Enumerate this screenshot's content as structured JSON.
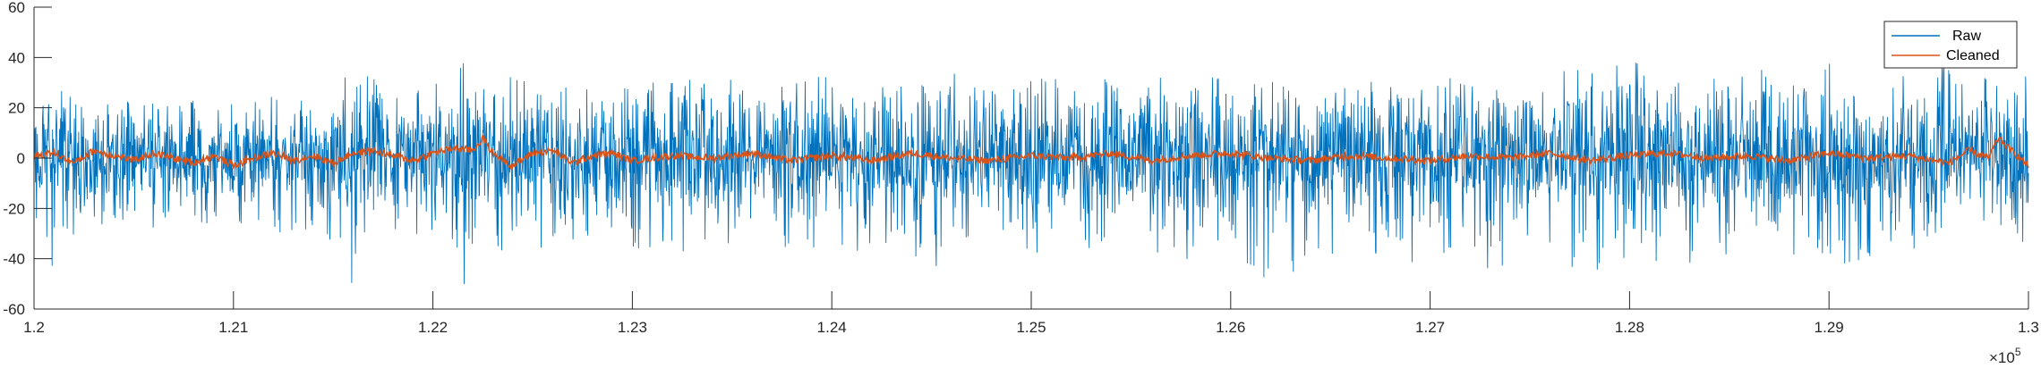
{
  "chart_data": {
    "type": "line",
    "title": "",
    "xlabel": "",
    "ylabel": "",
    "xlim": [
      120000,
      130000
    ],
    "ylim": [
      -60,
      60
    ],
    "x_tick_labels": [
      "1.2",
      "1.21",
      "1.22",
      "1.23",
      "1.24",
      "1.25",
      "1.26",
      "1.27",
      "1.28",
      "1.29",
      "1.3"
    ],
    "y_tick_labels": [
      "60",
      "40",
      "20",
      "0",
      "-20",
      "-40",
      "-60"
    ],
    "x_exponent": {
      "base": "×10",
      "power": "5"
    },
    "grid": false,
    "legend_position": "top-right",
    "series": [
      {
        "name": "Raw",
        "color": "#0072BD",
        "note": "dense noise signal; approximate envelope values per segment",
        "x": [
          120000,
          120100,
          120200,
          120300,
          120400,
          120500,
          120600,
          120700,
          120800,
          120900,
          121000,
          121100,
          121200,
          121300,
          121400,
          121500,
          121600,
          121650,
          121700,
          121800,
          121900,
          122000,
          122100,
          122150,
          122200,
          122300,
          122400,
          122500,
          122600,
          122700,
          122800,
          122900,
          123000,
          123200,
          123400,
          123600,
          123800,
          124000,
          124200,
          124400,
          124600,
          124800,
          125000,
          125200,
          125400,
          125600,
          125800,
          126000,
          126200,
          126400,
          126600,
          126800,
          127000,
          127200,
          127400,
          127600,
          127800,
          128000,
          128100,
          128200,
          128400,
          128600,
          128800,
          129000,
          129200,
          129400,
          129600,
          129800,
          130000
        ],
        "max": [
          28,
          22,
          25,
          20,
          26,
          22,
          24,
          20,
          25,
          22,
          24,
          22,
          26,
          30,
          25,
          28,
          38,
          45,
          35,
          30,
          28,
          30,
          32,
          36,
          30,
          28,
          35,
          30,
          28,
          34,
          32,
          28,
          30,
          30,
          34,
          28,
          30,
          34,
          28,
          32,
          30,
          28,
          34,
          30,
          32,
          28,
          30,
          34,
          32,
          30,
          28,
          34,
          36,
          32,
          30,
          34,
          36,
          38,
          43,
          34,
          32,
          36,
          34,
          38,
          36,
          34,
          40,
          36,
          40
        ],
        "min": [
          -27,
          -55,
          -30,
          -32,
          -28,
          -25,
          -30,
          -28,
          -32,
          -30,
          -28,
          -30,
          -32,
          -30,
          -28,
          -35,
          -54,
          -40,
          -35,
          -32,
          -30,
          -34,
          -40,
          -52,
          -42,
          -38,
          -36,
          -34,
          -47,
          -38,
          -36,
          -34,
          -36,
          -38,
          -36,
          -34,
          -38,
          -36,
          -38,
          -40,
          -46,
          -38,
          -40,
          -36,
          -38,
          -46,
          -42,
          -40,
          -50,
          -42,
          -40,
          -44,
          -40,
          -46,
          -48,
          -44,
          -46,
          -42,
          -52,
          -44,
          -42,
          -40,
          -38,
          -44,
          -40,
          -38,
          -40,
          -42,
          -40
        ]
      },
      {
        "name": "Cleaned",
        "color": "#D95319",
        "note": "smoothed trace oscillating around zero",
        "x": [
          120000,
          120100,
          120200,
          120300,
          120400,
          120500,
          120600,
          120700,
          120800,
          120900,
          121000,
          121100,
          121200,
          121300,
          121400,
          121500,
          121600,
          121700,
          121800,
          121900,
          122000,
          122100,
          122200,
          122250,
          122300,
          122400,
          122500,
          122600,
          122700,
          122800,
          122900,
          123000,
          123200,
          123400,
          123600,
          123800,
          124000,
          124200,
          124400,
          124600,
          124800,
          125000,
          125200,
          125400,
          125600,
          125800,
          126000,
          126200,
          126400,
          126600,
          126800,
          127000,
          127200,
          127400,
          127600,
          127800,
          128000,
          128200,
          128400,
          128600,
          128800,
          129000,
          129200,
          129400,
          129600,
          129700,
          129800,
          129850,
          129900,
          130000
        ],
        "y": [
          1,
          2,
          -2,
          3,
          1,
          -1,
          2,
          0,
          -2,
          1,
          -3,
          0,
          2,
          -1,
          1,
          -2,
          2,
          3,
          1,
          -1,
          2,
          4,
          3,
          8,
          2,
          -3,
          2,
          3,
          -2,
          1,
          2,
          -1,
          1,
          0,
          2,
          -1,
          1,
          -1,
          2,
          0,
          -1,
          1,
          0,
          2,
          -1,
          1,
          2,
          0,
          -1,
          1,
          0,
          -1,
          1,
          0,
          2,
          -1,
          1,
          2,
          0,
          1,
          -1,
          2,
          0,
          1,
          -2,
          3,
          0,
          8,
          4,
          -3
        ]
      }
    ]
  }
}
